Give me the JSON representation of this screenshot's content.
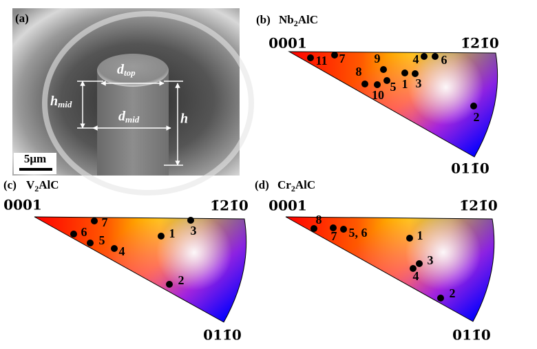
{
  "panel_a": {
    "label": "(a)",
    "d_top": {
      "main": "d",
      "sub": "top"
    },
    "h_mid": {
      "main": "h",
      "sub": "mid"
    },
    "d_mid": {
      "main": "d",
      "sub": "mid"
    },
    "h": "h",
    "scale_bar": "5μm"
  },
  "ipfs": [
    {
      "label": "(b)",
      "material": {
        "pre": "Nb",
        "sub": "2",
        "post": "AlC"
      },
      "corners": [
        "0001",
        "1̄21̄0",
        "011̄0"
      ],
      "points": [
        "11",
        "7",
        "9",
        "8",
        "10",
        "5",
        "1",
        "3",
        "4",
        "6",
        "2"
      ]
    },
    {
      "label": "(c)",
      "material": {
        "pre": "V",
        "sub": "2",
        "post": "AlC"
      },
      "corners": [
        "0001",
        "1̄21̄0",
        "011̄0"
      ],
      "points": [
        "7",
        "3",
        "6",
        "1",
        "5",
        "4",
        "2"
      ]
    },
    {
      "label": "(d)",
      "material": {
        "pre": "Cr",
        "sub": "2",
        "post": "AlC"
      },
      "corners": [
        "0001",
        "1̄21̄0",
        "011̄0"
      ],
      "points": [
        "8",
        "7",
        "5, 6",
        "1",
        "3",
        "4",
        "2"
      ]
    }
  ]
}
